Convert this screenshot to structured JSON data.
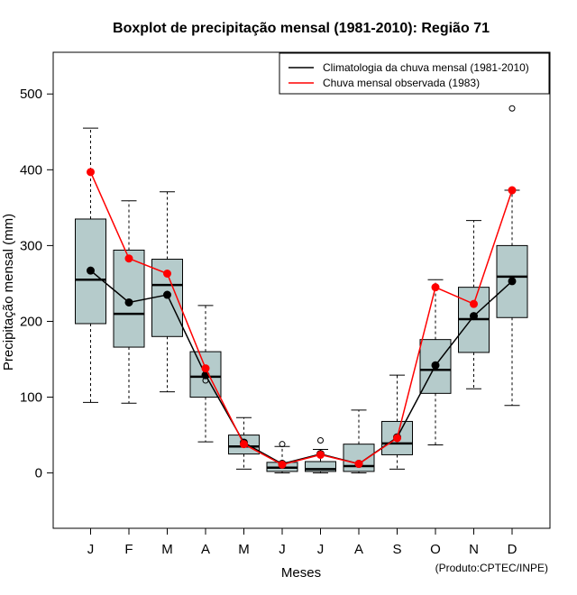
{
  "chart_data": {
    "type": "boxplot",
    "title": "Boxplot de precipitação mensal (1981-2010): Região 71",
    "xlabel": "Meses",
    "ylabel": "Precipitação mensal (mm)",
    "ylim": [
      -73,
      555
    ],
    "yticks": [
      0,
      100,
      200,
      300,
      400,
      500
    ],
    "categories": [
      "J",
      "F",
      "M",
      "A",
      "M",
      "J",
      "J",
      "A",
      "S",
      "O",
      "N",
      "D"
    ],
    "boxes": [
      {
        "min": 93,
        "q1": 197,
        "median": 255,
        "q3": 335,
        "max": 455,
        "outliers": []
      },
      {
        "min": 92,
        "q1": 166,
        "median": 210,
        "q3": 294,
        "max": 359,
        "outliers": []
      },
      {
        "min": 107,
        "q1": 180,
        "median": 248,
        "q3": 282,
        "max": 371,
        "outliers": []
      },
      {
        "min": 41,
        "q1": 100,
        "median": 127,
        "q3": 160,
        "max": 221,
        "outliers": [
          122
        ]
      },
      {
        "min": 5,
        "q1": 25,
        "median": 35,
        "q3": 50,
        "max": 73,
        "outliers": []
      },
      {
        "min": 0,
        "q1": 2,
        "median": 7,
        "q3": 14,
        "max": 35,
        "outliers": [
          38
        ]
      },
      {
        "min": 0,
        "q1": 2,
        "median": 5,
        "q3": 15,
        "max": 31,
        "outliers": [
          43
        ]
      },
      {
        "min": 0,
        "q1": 2,
        "median": 9,
        "q3": 38,
        "max": 83,
        "outliers": []
      },
      {
        "min": 5,
        "q1": 24,
        "median": 39,
        "q3": 68,
        "max": 129,
        "outliers": []
      },
      {
        "min": 37,
        "q1": 105,
        "median": 136,
        "q3": 176,
        "max": 255,
        "outliers": []
      },
      {
        "min": 111,
        "q1": 159,
        "median": 203,
        "q3": 245,
        "max": 333,
        "outliers": []
      },
      {
        "min": 89,
        "q1": 205,
        "median": 259,
        "q3": 300,
        "max": 373,
        "outliers": [
          481
        ]
      }
    ],
    "series": [
      {
        "name": "Climatologia da chuva mensal (1981-2010)",
        "color": "#000000",
        "values": [
          267,
          225,
          235,
          129,
          40,
          12,
          25,
          12,
          47,
          142,
          207,
          253
        ]
      },
      {
        "name": "Chuva mensal observada (1983)",
        "color": "#ff0000",
        "values": [
          397,
          283,
          263,
          138,
          38,
          11,
          24,
          12,
          46,
          245,
          223,
          373
        ]
      }
    ],
    "box_fill": "#b5cbcb",
    "legend_position": "top-right",
    "grid": false
  },
  "credit": "(Produto:CPTEC/INPE)"
}
